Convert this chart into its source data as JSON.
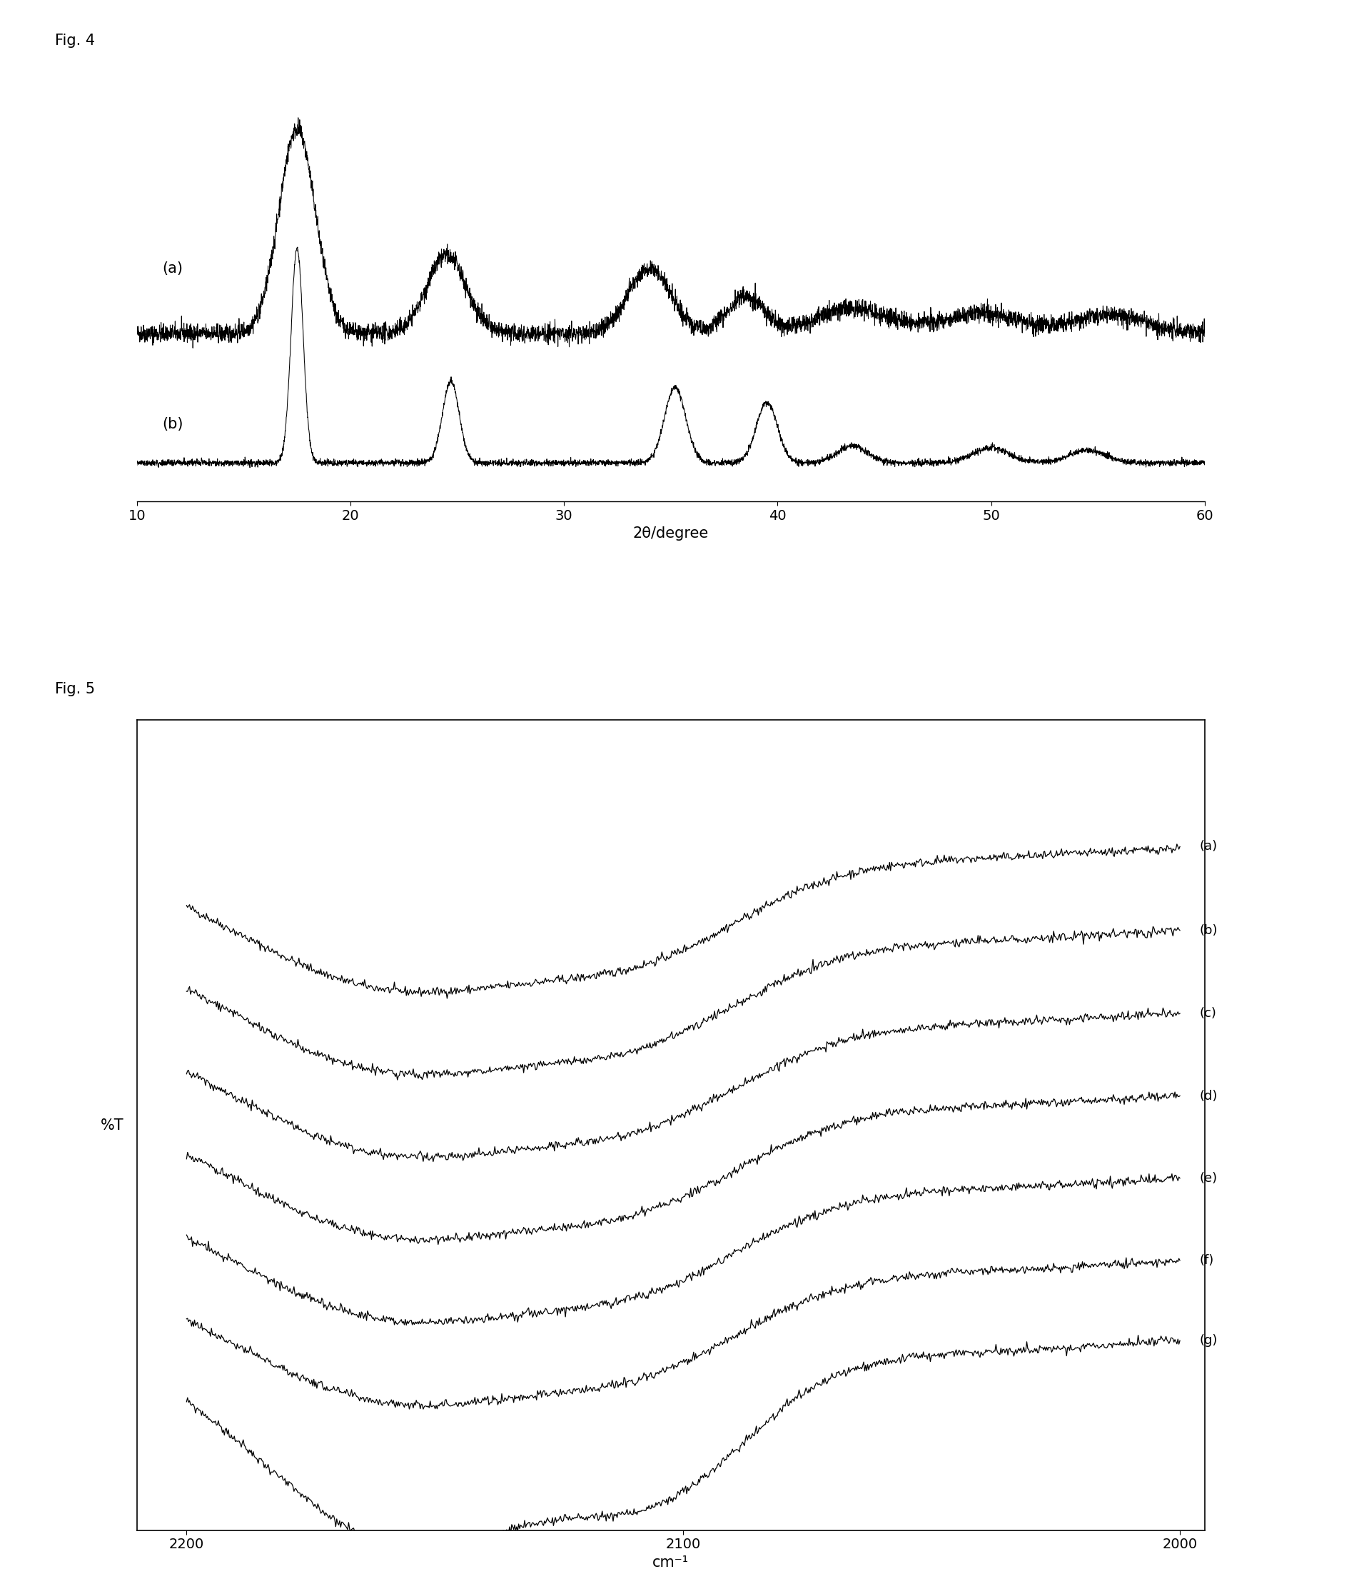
{
  "fig4_title": "Fig. 4",
  "fig5_title": "Fig. 5",
  "fig4_xlabel": "2θ/degree",
  "fig4_xlim": [
    10,
    60
  ],
  "fig4_xticks": [
    10,
    20,
    30,
    40,
    50,
    60
  ],
  "fig4_xticklabels": [
    "10",
    "20",
    "30",
    "40",
    "50",
    "60"
  ],
  "fig5_xlabel": "cm⁻¹",
  "fig5_xlim": [
    2200,
    2000
  ],
  "fig5_xticks": [
    2200,
    2100,
    2000
  ],
  "fig5_xticklabels": [
    "2200",
    "2100",
    "2000"
  ],
  "fig5_ylabel": "%T",
  "background_color": "#ffffff",
  "line_color": "#000000",
  "fig4_labels": [
    "(a)",
    "(b)"
  ],
  "fig5_labels": [
    "(a)",
    "(b)",
    "(c)",
    "(d)",
    "(e)",
    "(f)",
    "(g)"
  ]
}
